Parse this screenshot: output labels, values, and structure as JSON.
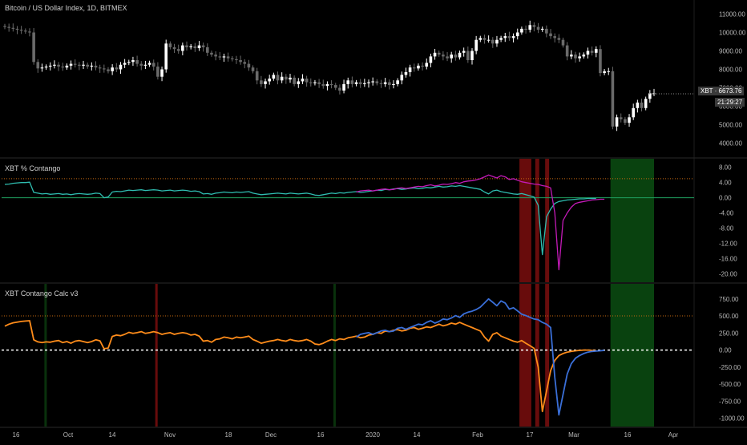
{
  "colors": {
    "background": "#000000",
    "up_candle": "#ffffff",
    "down_candle": "#6a6a6a",
    "cyan_line": "#2fbdb0",
    "magenta_line": "#c41ab8",
    "orange_line": "#ff8c1a",
    "blue_line": "#3a6fd8",
    "red_band": "#7a0e0e",
    "green_band": "#0b4d12",
    "dark_green_band": "#0a3a0e",
    "price_tag": "#333333",
    "orange_level": "#c86a10",
    "green_zero": "#1fa060"
  },
  "panes": {
    "price": {
      "title": "Bitcoin / US Dollar Index, 1D, BITMEX",
      "ticks": [
        "11000.00",
        "10000.00",
        "9000.00",
        "8000.00",
        "7000.00",
        "6000.00",
        "5000.00",
        "4000.00"
      ],
      "last_label": "XBT · 6673.76",
      "countdown": "21:29:27"
    },
    "contango": {
      "title": "XBT % Contango",
      "ticks": [
        "8.00",
        "4.00",
        "0.00",
        "-4.00",
        "-8.00",
        "-12.00",
        "-16.00",
        "-20.00"
      ]
    },
    "calc": {
      "title": "XBT Contango Calc v3",
      "ticks": [
        "750.00",
        "500.00",
        "250.00",
        "0.00",
        "-250.00",
        "-500.00",
        "-750.00",
        "-1000.00"
      ]
    }
  },
  "x_axis": {
    "labels": [
      "16",
      "Oct",
      "14",
      "Nov",
      "18",
      "Dec",
      "16",
      "2020",
      "14",
      "Feb",
      "17",
      "Mar",
      "16",
      "Apr"
    ]
  },
  "chart_data": [
    {
      "type": "candlestick",
      "title": "Bitcoin / US Dollar Index, 1D, BITMEX",
      "ylim": [
        3500,
        11500
      ],
      "close": [
        10300,
        10250,
        10200,
        10150,
        10100,
        10050,
        10000,
        8400,
        8050,
        8100,
        8150,
        8200,
        8250,
        8150,
        8100,
        8200,
        8300,
        8250,
        8200,
        8250,
        8150,
        8200,
        8100,
        8050,
        8000,
        7900,
        8100,
        8000,
        8250,
        8350,
        8400,
        8500,
        8300,
        8200,
        8250,
        8350,
        8150,
        7600,
        8000,
        9400,
        9200,
        9100,
        9000,
        9300,
        9200,
        9250,
        9150,
        9300,
        9200,
        8900,
        8800,
        8700,
        8650,
        8700,
        8600,
        8550,
        8500,
        8400,
        8300,
        8100,
        7900,
        7400,
        7200,
        7350,
        7500,
        7700,
        7400,
        7600,
        7450,
        7550,
        7200,
        7350,
        7500,
        7300,
        7250,
        7300,
        7200,
        7100,
        7200,
        7150,
        7000,
        6850,
        7200,
        7400,
        7200,
        7300,
        7200,
        7250,
        7300,
        7350,
        7250,
        7200,
        7300,
        7150,
        7200,
        7400,
        7700,
        7850,
        8100,
        8050,
        8200,
        8150,
        8350,
        8700,
        8900,
        8800,
        8700,
        8600,
        8800,
        8650,
        8900,
        9000,
        8500,
        9000,
        9600,
        9700,
        9600,
        9600,
        9400,
        9600,
        9700,
        9800,
        9700,
        9800,
        10000,
        10200,
        10150,
        10400,
        10300,
        10150,
        10200,
        9950,
        9800,
        9700,
        9600,
        9300,
        8700,
        8800,
        8600,
        8700,
        8800,
        9000,
        8900,
        9100,
        7800,
        7900,
        7900,
        4900,
        5400,
        5300,
        5100,
        5400,
        5900,
        6200,
        5900,
        6400,
        6700,
        6700
      ],
      "up_color": "#ffffff",
      "down_color": "#6a6a6a",
      "last_value": 6673.76
    },
    {
      "type": "line",
      "title": "XBT % Contango",
      "ylim": [
        -21,
        9
      ],
      "series": [
        {
          "color": "#2fbdb0",
          "values": [
            3.5,
            3.6,
            3.8,
            3.9,
            4.0,
            4.0,
            4.1,
            1.4,
            1.2,
            1.0,
            1.1,
            0.9,
            1.0,
            1.1,
            0.9,
            1.0,
            0.8,
            1.0,
            1.1,
            1.0,
            0.9,
            1.0,
            1.2,
            1.1,
            0.0,
            0.2,
            1.5,
            1.7,
            1.6,
            1.8,
            2.0,
            1.9,
            2.0,
            2.1,
            1.9,
            2.0,
            2.1,
            2.0,
            1.8,
            1.9,
            2.0,
            1.8,
            1.9,
            2.0,
            1.9,
            1.7,
            1.8,
            1.6,
            1.0,
            1.1,
            0.9,
            1.2,
            1.3,
            1.5,
            1.4,
            1.3,
            1.5,
            1.4,
            1.5,
            1.6,
            1.2,
            1.0,
            0.8,
            0.9,
            1.0,
            1.1,
            1.2,
            1.1,
            1.0,
            1.2,
            1.1,
            1.0,
            1.1,
            1.2,
            1.0,
            0.7,
            0.6,
            0.8,
            1.0,
            1.2,
            1.1,
            1.3,
            1.2,
            1.4,
            1.5,
            1.6,
            1.4,
            1.5,
            1.7,
            1.8,
            2.0,
            1.9,
            2.2,
            2.1,
            2.3,
            2.4,
            2.2,
            2.3,
            2.5,
            2.6,
            2.4,
            2.5,
            2.7,
            2.6,
            2.8,
            3.0,
            2.8,
            2.9,
            3.1,
            3.0,
            3.2,
            3.0,
            2.8,
            2.6,
            2.4,
            2.2,
            1.5,
            1.0,
            1.8,
            2.0,
            1.6,
            1.4,
            1.2,
            1.0,
            0.9,
            1.1,
            0.8,
            0.5,
            0.2,
            -2.0,
            -15.0,
            -5.0,
            -3.0,
            -1.5,
            -1.0,
            -0.8,
            -0.6,
            -0.5,
            -0.4,
            -0.3,
            -0.3,
            -0.2,
            -0.2,
            -0.2
          ]
        },
        {
          "color": "#c41ab8",
          "values": [
            null,
            null,
            null,
            null,
            null,
            null,
            null,
            null,
            null,
            null,
            null,
            null,
            null,
            null,
            null,
            null,
            null,
            null,
            null,
            null,
            null,
            null,
            null,
            null,
            null,
            null,
            null,
            null,
            null,
            null,
            null,
            null,
            null,
            null,
            null,
            null,
            null,
            null,
            null,
            null,
            null,
            null,
            null,
            null,
            null,
            null,
            null,
            null,
            null,
            null,
            null,
            null,
            null,
            null,
            null,
            null,
            null,
            null,
            null,
            null,
            null,
            null,
            null,
            null,
            null,
            null,
            null,
            null,
            null,
            null,
            null,
            null,
            null,
            null,
            null,
            null,
            null,
            null,
            null,
            null,
            null,
            null,
            null,
            null,
            null,
            1.5,
            1.8,
            1.9,
            2.0,
            1.8,
            2.0,
            2.2,
            2.3,
            2.1,
            2.2,
            2.5,
            2.6,
            2.4,
            2.6,
            2.8,
            3.0,
            2.9,
            3.2,
            3.4,
            3.1,
            3.3,
            3.6,
            3.5,
            3.7,
            4.0,
            3.8,
            4.2,
            4.4,
            4.5,
            4.7,
            5.0,
            5.5,
            6.0,
            5.6,
            5.2,
            5.8,
            5.5,
            4.8,
            5.0,
            4.6,
            4.2,
            4.0,
            3.8,
            3.6,
            3.5,
            3.2,
            3.0,
            2.6,
            -4.0,
            -19.0,
            -6.0,
            -4.0,
            -2.5,
            -1.5,
            -1.2,
            -1.0,
            -0.8,
            -0.6,
            -0.5,
            -0.4,
            -0.4
          ]
        }
      ],
      "levels": [
        5,
        0
      ]
    },
    {
      "type": "line",
      "title": "XBT Contango Calc v3",
      "ylim": [
        -1050,
        900
      ],
      "series": [
        {
          "color": "#ff8c1a",
          "values": [
            350,
            380,
            400,
            410,
            420,
            425,
            430,
            150,
            120,
            110,
            120,
            115,
            130,
            140,
            110,
            125,
            100,
            130,
            140,
            125,
            110,
            125,
            150,
            135,
            20,
            30,
            200,
            220,
            210,
            230,
            260,
            245,
            255,
            270,
            245,
            255,
            270,
            255,
            230,
            245,
            255,
            230,
            245,
            255,
            245,
            220,
            230,
            205,
            130,
            140,
            115,
            155,
            165,
            190,
            180,
            165,
            190,
            180,
            190,
            205,
            155,
            130,
            100,
            115,
            130,
            140,
            155,
            140,
            130,
            155,
            140,
            130,
            140,
            155,
            130,
            90,
            80,
            100,
            130,
            155,
            140,
            165,
            155,
            180,
            190,
            205,
            180,
            190,
            220,
            230,
            255,
            245,
            280,
            270,
            290,
            300,
            280,
            290,
            320,
            330,
            305,
            320,
            340,
            330,
            355,
            380,
            355,
            370,
            395,
            380,
            405,
            380,
            355,
            330,
            305,
            280,
            190,
            130,
            230,
            255,
            205,
            180,
            155,
            130,
            115,
            140,
            100,
            65,
            25,
            -250,
            -900,
            -600,
            -300,
            -150,
            -80,
            -50,
            -30,
            -20,
            -10,
            -5,
            0,
            0,
            -5,
            -10
          ]
        },
        {
          "color": "#3a6fd8",
          "values": [
            null,
            null,
            null,
            null,
            null,
            null,
            null,
            null,
            null,
            null,
            null,
            null,
            null,
            null,
            null,
            null,
            null,
            null,
            null,
            null,
            null,
            null,
            null,
            null,
            null,
            null,
            null,
            null,
            null,
            null,
            null,
            null,
            null,
            null,
            null,
            null,
            null,
            null,
            null,
            null,
            null,
            null,
            null,
            null,
            null,
            null,
            null,
            null,
            null,
            null,
            null,
            null,
            null,
            null,
            null,
            null,
            null,
            null,
            null,
            null,
            null,
            null,
            null,
            null,
            null,
            null,
            null,
            null,
            null,
            null,
            null,
            null,
            null,
            null,
            null,
            null,
            null,
            null,
            null,
            null,
            null,
            null,
            null,
            null,
            null,
            190,
            230,
            245,
            255,
            230,
            255,
            280,
            290,
            270,
            280,
            320,
            330,
            305,
            330,
            355,
            380,
            370,
            405,
            430,
            395,
            420,
            455,
            445,
            470,
            505,
            480,
            530,
            555,
            570,
            595,
            630,
            690,
            750,
            700,
            650,
            720,
            690,
            600,
            620,
            575,
            525,
            505,
            480,
            455,
            445,
            405,
            380,
            330,
            -400,
            -950,
            -650,
            -350,
            -200,
            -120,
            -80,
            -50,
            -30,
            -20,
            -15,
            -10,
            -5
          ]
        }
      ],
      "levels": [
        500,
        0
      ]
    }
  ]
}
